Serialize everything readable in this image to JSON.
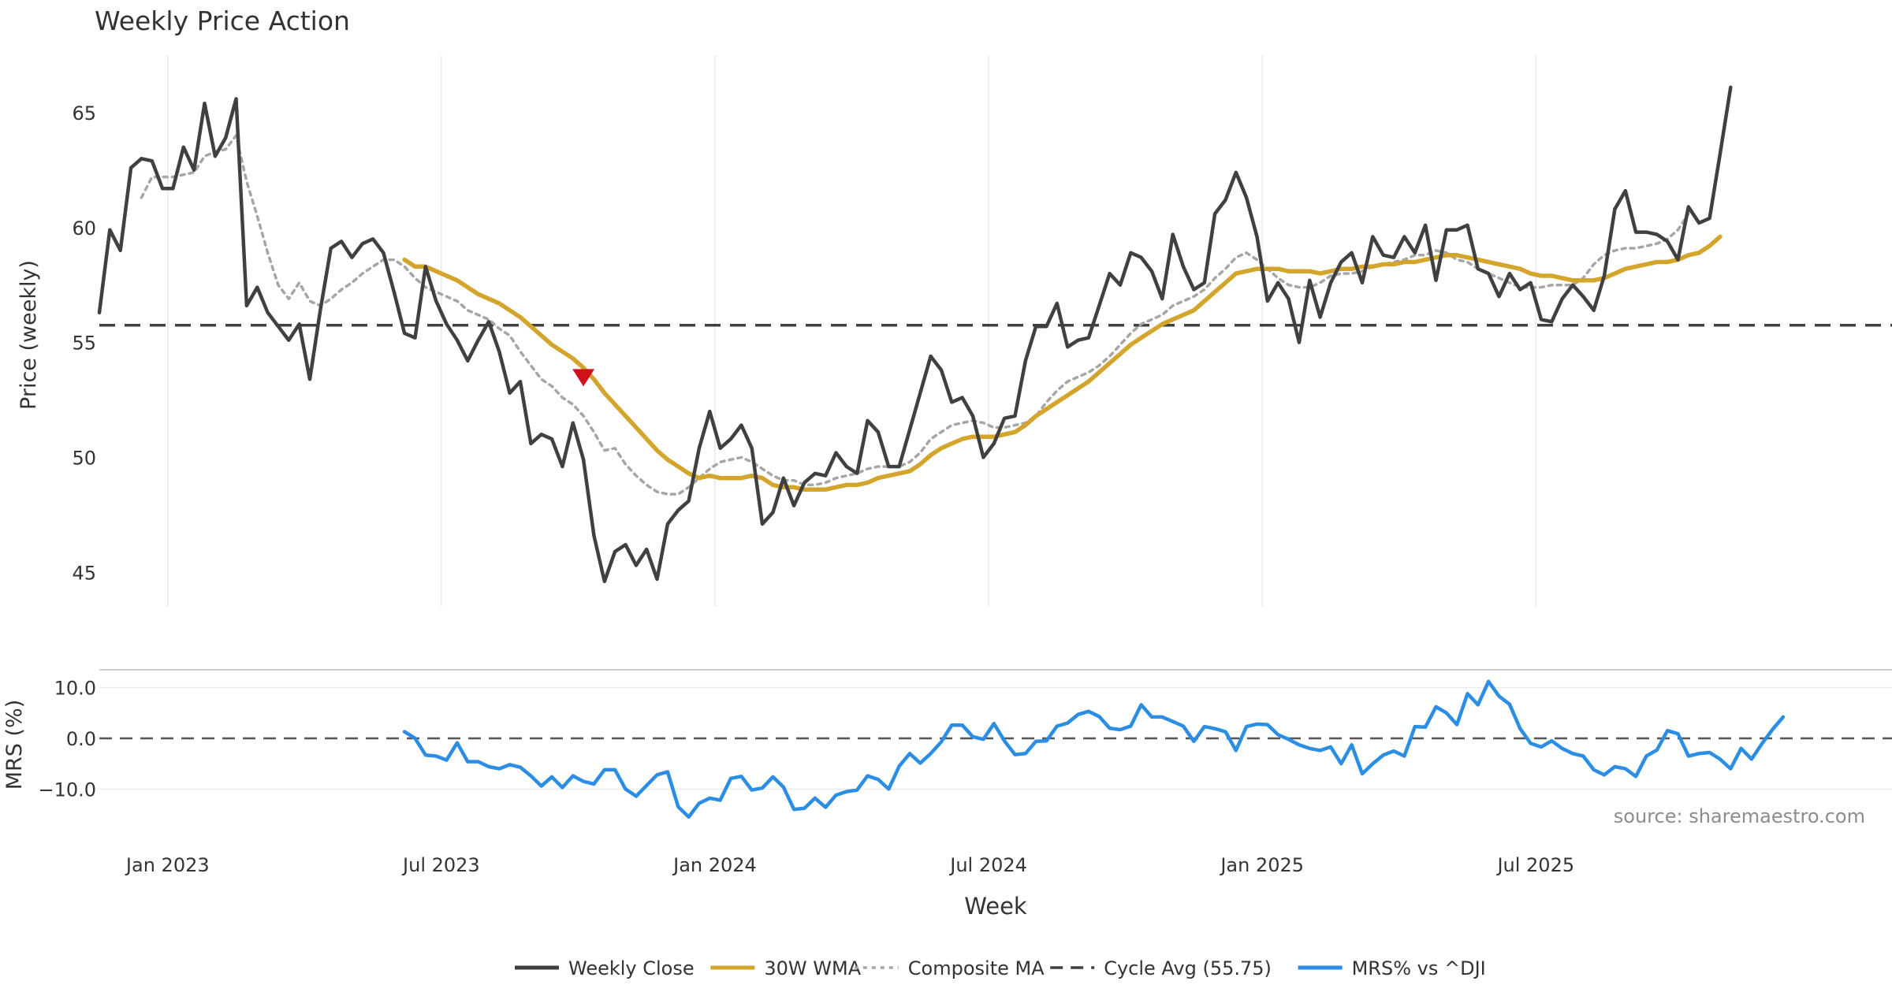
{
  "chart_data": {
    "type": "line",
    "title": "Weekly Price Action",
    "xlabel": "Week",
    "source": "source: sharemaestro.com",
    "x_ticks": [
      "Jan 2023",
      "Jul 2023",
      "Jan 2024",
      "Jul 2024",
      "Jan 2025",
      "Jul 2025"
    ],
    "price_panel": {
      "ylabel": "Price (weekly)",
      "ylim": [
        43.5,
        67.5
      ],
      "yticks": [
        45,
        50,
        55,
        60,
        65
      ],
      "grid": true,
      "cycle_avg": 55.75,
      "signal_marker": {
        "week": 46,
        "price": 53.5,
        "shape": "down-triangle",
        "color": "#d0101a"
      },
      "series": [
        {
          "name": "Weekly Close",
          "color": "#404040",
          "start_week": 0,
          "values": [
            56.3,
            59.9,
            59.0,
            62.6,
            63.0,
            62.9,
            61.7,
            61.7,
            63.5,
            62.5,
            65.4,
            63.1,
            63.9,
            65.6,
            56.6,
            57.4,
            56.3,
            55.7,
            55.1,
            55.8,
            53.4,
            56.4,
            59.1,
            59.4,
            58.7,
            59.3,
            59.5,
            58.9,
            57.2,
            55.4,
            55.2,
            58.3,
            56.8,
            55.8,
            55.1,
            54.2,
            55.1,
            55.9,
            54.6,
            52.8,
            53.3,
            50.6,
            51.0,
            50.8,
            49.6,
            51.5,
            49.9,
            46.6,
            44.6,
            45.9,
            46.2,
            45.3,
            46.0,
            44.7,
            47.1,
            47.7,
            48.1,
            50.4,
            52.0,
            50.4,
            50.8,
            51.4,
            50.4,
            47.1,
            47.6,
            49.1,
            47.9,
            48.9,
            49.3,
            49.2,
            50.2,
            49.6,
            49.3,
            51.6,
            51.1,
            49.6,
            49.6,
            51.2,
            52.8,
            54.4,
            53.8,
            52.4,
            52.6,
            51.8,
            50.0,
            50.6,
            51.7,
            51.8,
            54.2,
            55.7,
            55.7,
            56.7,
            54.8,
            55.1,
            55.2,
            56.6,
            58.0,
            57.5,
            58.9,
            58.7,
            58.1,
            56.9,
            59.7,
            58.3,
            57.3,
            57.6,
            60.6,
            61.2,
            62.4,
            61.3,
            59.6,
            56.8,
            57.6,
            56.9,
            55.0,
            57.7,
            56.1,
            57.6,
            58.5,
            58.9,
            57.6,
            59.6,
            58.8,
            58.7,
            59.6,
            58.9,
            60.1,
            57.7,
            59.9,
            59.9,
            60.1,
            58.2,
            58.0,
            57.0,
            58.0,
            57.3,
            57.6,
            56.0,
            55.9,
            56.9,
            57.5,
            57.0,
            56.4,
            57.9,
            60.8,
            61.6,
            59.8,
            59.8,
            59.7,
            59.4,
            58.6,
            60.9,
            60.2,
            60.4,
            63.2,
            66.1
          ]
        },
        {
          "name": "30W WMA",
          "color": "#d4a52c",
          "start_week": 29,
          "values": [
            58.6,
            58.3,
            58.3,
            58.1,
            57.9,
            57.7,
            57.4,
            57.1,
            56.9,
            56.7,
            56.4,
            56.1,
            55.7,
            55.3,
            54.9,
            54.6,
            54.3,
            53.9,
            53.4,
            52.8,
            52.3,
            51.8,
            51.3,
            50.8,
            50.3,
            49.9,
            49.6,
            49.3,
            49.1,
            49.2,
            49.1,
            49.1,
            49.1,
            49.2,
            49.1,
            48.8,
            48.7,
            48.7,
            48.6,
            48.6,
            48.6,
            48.7,
            48.8,
            48.8,
            48.9,
            49.1,
            49.2,
            49.3,
            49.4,
            49.7,
            50.1,
            50.4,
            50.6,
            50.8,
            50.9,
            50.9,
            50.9,
            51.0,
            51.1,
            51.4,
            51.8,
            52.1,
            52.4,
            52.7,
            53.0,
            53.3,
            53.7,
            54.1,
            54.5,
            54.9,
            55.2,
            55.5,
            55.8,
            56.0,
            56.2,
            56.4,
            56.8,
            57.2,
            57.6,
            58.0,
            58.1,
            58.2,
            58.2,
            58.2,
            58.1,
            58.1,
            58.1,
            58.0,
            58.1,
            58.2,
            58.2,
            58.3,
            58.3,
            58.4,
            58.4,
            58.5,
            58.5,
            58.6,
            58.7,
            58.8,
            58.8,
            58.7,
            58.6,
            58.5,
            58.4,
            58.3,
            58.2,
            58.0,
            57.9,
            57.9,
            57.8,
            57.7,
            57.7,
            57.7,
            57.8,
            58.0,
            58.2,
            58.3,
            58.4,
            58.5,
            58.5,
            58.6,
            58.8,
            58.9,
            59.2,
            59.6
          ]
        },
        {
          "name": "Composite MA",
          "color": "#a6a6a6",
          "start_week": 4,
          "values": [
            61.3,
            62.2,
            62.2,
            62.2,
            62.3,
            62.4,
            63.1,
            63.3,
            63.4,
            64.0,
            62.0,
            60.5,
            58.9,
            57.5,
            56.9,
            57.6,
            56.8,
            56.6,
            56.9,
            57.3,
            57.6,
            58.0,
            58.3,
            58.6,
            58.6,
            58.3,
            57.8,
            57.4,
            57.2,
            57.0,
            56.8,
            56.4,
            56.2,
            56.0,
            55.6,
            55.3,
            54.6,
            54.0,
            53.4,
            53.1,
            52.6,
            52.3,
            51.8,
            51.1,
            50.3,
            50.4,
            49.7,
            49.2,
            48.8,
            48.5,
            48.4,
            48.4,
            48.7,
            49.1,
            49.5,
            49.8,
            49.9,
            50.0,
            49.8,
            49.5,
            49.2,
            49.0,
            49.0,
            48.8,
            48.8,
            48.9,
            49.1,
            49.2,
            49.3,
            49.5,
            49.6,
            49.6,
            49.6,
            49.8,
            50.2,
            50.8,
            51.1,
            51.4,
            51.5,
            51.6,
            51.5,
            51.3,
            51.3,
            51.4,
            51.5,
            51.8,
            52.4,
            52.9,
            53.3,
            53.5,
            53.7,
            54.0,
            54.4,
            54.9,
            55.4,
            55.8,
            56.0,
            56.2,
            56.6,
            56.8,
            57.0,
            57.3,
            57.8,
            58.2,
            58.7,
            58.9,
            58.6,
            58.2,
            57.8,
            57.5,
            57.4,
            57.4,
            57.6,
            57.9,
            58.0,
            58.0,
            58.1,
            58.3,
            58.4,
            58.5,
            58.6,
            58.8,
            58.8,
            59.0,
            58.9,
            58.6,
            58.5,
            58.2,
            58.0,
            57.8,
            57.6,
            57.4,
            57.4,
            57.4,
            57.5,
            57.5,
            57.5,
            57.8,
            58.4,
            58.8,
            59.0,
            59.1,
            59.1,
            59.2,
            59.3,
            59.5,
            59.9,
            60.6
          ]
        }
      ]
    },
    "mrs_panel": {
      "ylabel": "MRS (%)",
      "ylim": [
        -16,
        13.5
      ],
      "yticks": [
        10.0,
        0.0,
        -10.0
      ],
      "ytick_labels": [
        "10.0",
        "0.0",
        "−10.0"
      ],
      "zero_line": true,
      "series": [
        {
          "name": "MRS% vs ^DJI",
          "color": "#2b8de3",
          "start_week": 29,
          "values": [
            1.3,
            0.0,
            -3.3,
            -3.5,
            -4.3,
            -0.9,
            -4.6,
            -4.6,
            -5.6,
            -6.0,
            -5.2,
            -5.7,
            -7.4,
            -9.4,
            -7.6,
            -9.7,
            -7.4,
            -8.5,
            -9.0,
            -6.2,
            -6.2,
            -10.0,
            -11.4,
            -9.3,
            -7.2,
            -6.6,
            -13.5,
            -15.5,
            -12.8,
            -11.8,
            -12.2,
            -7.9,
            -7.5,
            -10.2,
            -9.8,
            -7.6,
            -9.6,
            -14.0,
            -13.8,
            -11.8,
            -13.6,
            -11.2,
            -10.5,
            -10.2,
            -7.4,
            -8.1,
            -10.0,
            -5.5,
            -3.0,
            -4.9,
            -3.0,
            -0.7,
            2.6,
            2.6,
            0.3,
            -0.2,
            2.9,
            -0.5,
            -3.2,
            -3.0,
            -0.6,
            -0.5,
            2.4,
            3.0,
            4.7,
            5.3,
            4.3,
            2.0,
            1.7,
            2.4,
            6.6,
            4.2,
            4.2,
            3.3,
            2.4,
            -0.6,
            2.3,
            1.9,
            1.3,
            -2.4,
            2.3,
            2.8,
            2.7,
            0.7,
            -0.2,
            -1.3,
            -2.0,
            -2.4,
            -1.7,
            -5.0,
            -1.3,
            -7.0,
            -5.0,
            -3.3,
            -2.5,
            -3.5,
            2.3,
            2.2,
            6.2,
            5.0,
            2.7,
            8.8,
            6.6,
            11.2,
            8.3,
            6.7,
            1.9,
            -1.0,
            -1.7,
            -0.5,
            -2.0,
            -3.0,
            -3.5,
            -6.2,
            -7.2,
            -5.6,
            -6.0,
            -7.5,
            -3.5,
            -2.3,
            1.5,
            0.9,
            -3.5,
            -3.0,
            -2.8,
            -4.1,
            -6.0,
            -2.0,
            -4.1,
            -1.0,
            1.8,
            4.2
          ]
        }
      ]
    },
    "legend": {
      "placement": "bottom-center",
      "entries": [
        {
          "label": "Weekly Close",
          "color": "#404040",
          "style": "solid"
        },
        {
          "label": "30W WMA",
          "color": "#d4a52c",
          "style": "solid"
        },
        {
          "label": "Composite MA",
          "color": "#a6a6a6",
          "style": "dotted"
        },
        {
          "label": "Cycle Avg (55.75)",
          "color": "#404040",
          "style": "dashed"
        },
        {
          "label": "MRS% vs ^DJI",
          "color": "#2b8de3",
          "style": "solid"
        }
      ]
    }
  }
}
